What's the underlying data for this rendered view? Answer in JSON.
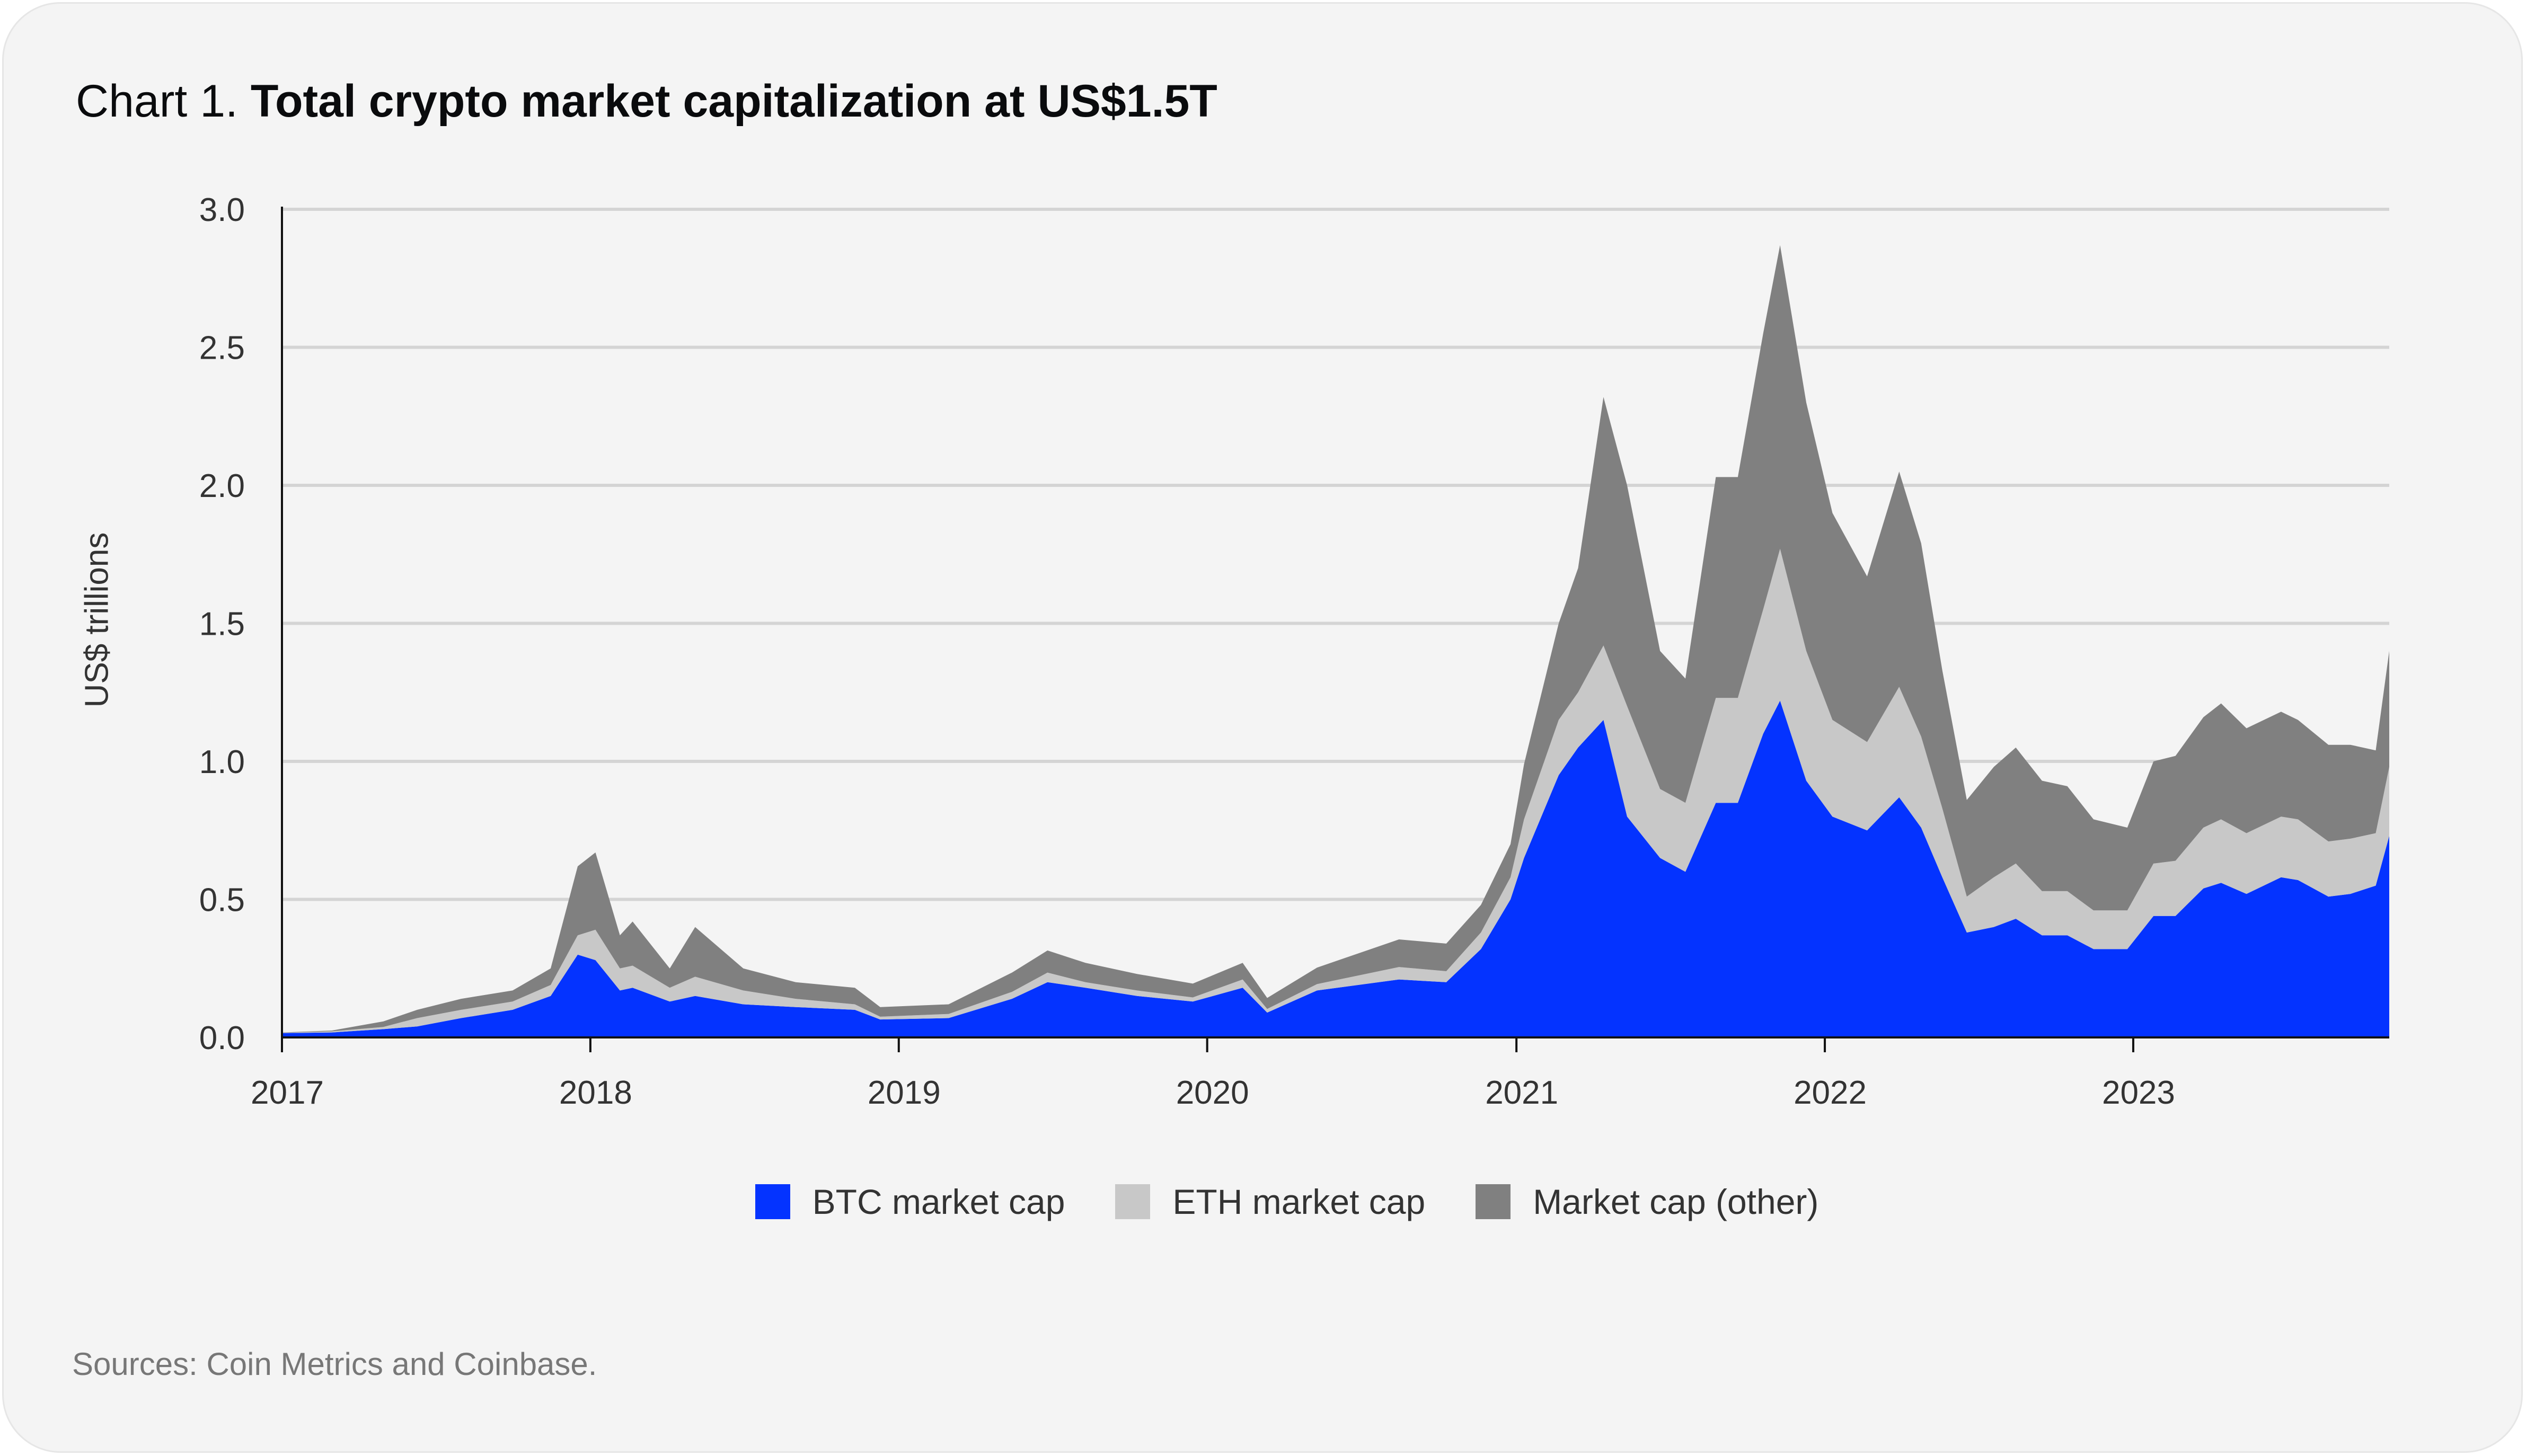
{
  "title": {
    "prefix": "Chart 1.",
    "main": "Total crypto market capitalization at US$1.5T"
  },
  "source": "Sources: Coin Metrics and Coinbase.",
  "chart_data": {
    "type": "area",
    "stacked": true,
    "title": "Total crypto market capitalization at US$1.5T",
    "xlabel": "",
    "ylabel": "US$ trillions",
    "ylim": [
      0,
      3.0
    ],
    "yticks": [
      "0.0",
      "0.5",
      "1.0",
      "1.5",
      "2.0",
      "2.5",
      "3.0"
    ],
    "xticks": [
      "2017",
      "2018",
      "2019",
      "2020",
      "2021",
      "2022",
      "2023"
    ],
    "xlim": [
      "2017-01-01",
      "2023-10-31"
    ],
    "grid": "horizontal",
    "legend_position": "bottom",
    "colors": {
      "btc": "#0433ff",
      "eth": "#c8c8c8",
      "other": "#808080"
    },
    "x": [
      "2017-01-01",
      "2017-03-01",
      "2017-05-01",
      "2017-06-10",
      "2017-08-01",
      "2017-10-01",
      "2017-11-15",
      "2017-12-17",
      "2018-01-07",
      "2018-02-05",
      "2018-02-20",
      "2018-04-05",
      "2018-05-05",
      "2018-07-01",
      "2018-09-01",
      "2018-11-10",
      "2018-12-10",
      "2019-03-01",
      "2019-05-15",
      "2019-06-26",
      "2019-08-10",
      "2019-10-10",
      "2019-12-15",
      "2020-02-12",
      "2020-03-12",
      "2020-05-10",
      "2020-08-15",
      "2020-10-10",
      "2020-11-20",
      "2020-12-25",
      "2021-01-10",
      "2021-02-20",
      "2021-03-15",
      "2021-04-14",
      "2021-05-12",
      "2021-06-20",
      "2021-07-20",
      "2021-08-25",
      "2021-09-20",
      "2021-10-20",
      "2021-11-09",
      "2021-12-10",
      "2022-01-10",
      "2022-02-20",
      "2022-03-30",
      "2022-04-25",
      "2022-05-20",
      "2022-06-18",
      "2022-07-20",
      "2022-08-15",
      "2022-09-15",
      "2022-10-15",
      "2022-11-15",
      "2022-12-25",
      "2023-01-25",
      "2023-02-20",
      "2023-03-25",
      "2023-04-15",
      "2023-05-15",
      "2023-06-25",
      "2023-07-15",
      "2023-08-20",
      "2023-09-15",
      "2023-10-15",
      "2023-10-31"
    ],
    "series": [
      {
        "name": "BTC market cap",
        "values": [
          0.016,
          0.018,
          0.03,
          0.04,
          0.07,
          0.1,
          0.15,
          0.3,
          0.28,
          0.17,
          0.18,
          0.13,
          0.15,
          0.12,
          0.11,
          0.1,
          0.065,
          0.07,
          0.14,
          0.2,
          0.18,
          0.15,
          0.13,
          0.18,
          0.09,
          0.17,
          0.21,
          0.2,
          0.32,
          0.5,
          0.65,
          0.95,
          1.05,
          1.15,
          0.8,
          0.65,
          0.6,
          0.85,
          0.85,
          1.1,
          1.22,
          0.93,
          0.8,
          0.75,
          0.87,
          0.76,
          0.58,
          0.38,
          0.4,
          0.43,
          0.37,
          0.37,
          0.32,
          0.32,
          0.44,
          0.44,
          0.54,
          0.56,
          0.52,
          0.58,
          0.57,
          0.51,
          0.52,
          0.55,
          0.73
        ]
      },
      {
        "name": "ETH market cap",
        "values": [
          0.001,
          0.004,
          0.008,
          0.03,
          0.03,
          0.03,
          0.04,
          0.07,
          0.11,
          0.08,
          0.08,
          0.05,
          0.07,
          0.05,
          0.03,
          0.02,
          0.01,
          0.015,
          0.025,
          0.035,
          0.02,
          0.02,
          0.015,
          0.03,
          0.013,
          0.023,
          0.045,
          0.04,
          0.06,
          0.08,
          0.14,
          0.2,
          0.2,
          0.27,
          0.4,
          0.25,
          0.25,
          0.38,
          0.38,
          0.45,
          0.55,
          0.47,
          0.35,
          0.32,
          0.4,
          0.33,
          0.25,
          0.13,
          0.18,
          0.2,
          0.16,
          0.16,
          0.14,
          0.14,
          0.19,
          0.2,
          0.22,
          0.23,
          0.22,
          0.22,
          0.22,
          0.2,
          0.2,
          0.19,
          0.25
        ]
      },
      {
        "name": "Market cap (other)",
        "values": [
          0.001,
          0.003,
          0.02,
          0.03,
          0.04,
          0.04,
          0.06,
          0.25,
          0.28,
          0.12,
          0.16,
          0.07,
          0.18,
          0.08,
          0.06,
          0.06,
          0.035,
          0.035,
          0.07,
          0.08,
          0.07,
          0.06,
          0.05,
          0.06,
          0.04,
          0.06,
          0.1,
          0.1,
          0.1,
          0.12,
          0.2,
          0.35,
          0.45,
          0.9,
          0.8,
          0.5,
          0.45,
          0.8,
          0.8,
          1.0,
          1.1,
          0.9,
          0.75,
          0.6,
          0.78,
          0.7,
          0.5,
          0.35,
          0.4,
          0.42,
          0.4,
          0.38,
          0.33,
          0.3,
          0.37,
          0.38,
          0.4,
          0.42,
          0.38,
          0.38,
          0.36,
          0.35,
          0.34,
          0.3,
          0.42
        ]
      }
    ]
  }
}
